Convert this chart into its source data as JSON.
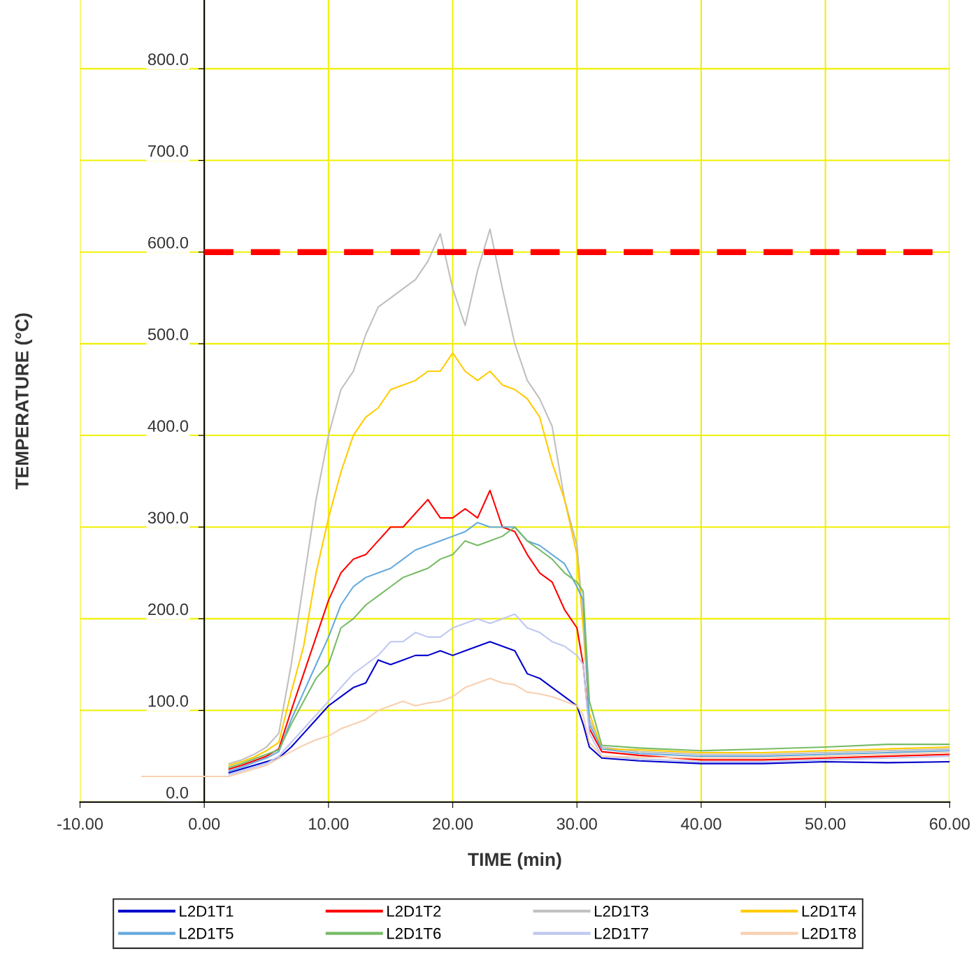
{
  "chart_data": {
    "type": "line",
    "xlabel": "TIME (min)",
    "ylabel": "TEMPERATURE (°C)",
    "x": [
      -5,
      0,
      2,
      3,
      4,
      5,
      6,
      7,
      8,
      9,
      10,
      11,
      12,
      13,
      14,
      15,
      16,
      17,
      18,
      19,
      20,
      21,
      22,
      23,
      24,
      25,
      26,
      27,
      28,
      29,
      30,
      30.5,
      31,
      32,
      35,
      40,
      45,
      50,
      55,
      60
    ],
    "xlim": [
      -10,
      60
    ],
    "ylim": [
      0,
      875
    ],
    "xticks": [
      {
        "value": -10,
        "label": "-10.00"
      },
      {
        "value": 0,
        "label": "0.00"
      },
      {
        "value": 10,
        "label": "10.00"
      },
      {
        "value": 20,
        "label": "20.00"
      },
      {
        "value": 30,
        "label": "30.00"
      },
      {
        "value": 40,
        "label": "40.00"
      },
      {
        "value": 50,
        "label": "50.00"
      },
      {
        "value": 60,
        "label": "60.00"
      }
    ],
    "yticks": [
      {
        "value": 0,
        "label": "0.0"
      },
      {
        "value": 100,
        "label": "100.0"
      },
      {
        "value": 200,
        "label": "200.0"
      },
      {
        "value": 300,
        "label": "300.0"
      },
      {
        "value": 400,
        "label": "400.0"
      },
      {
        "value": 500,
        "label": "500.0"
      },
      {
        "value": 600,
        "label": "600.0"
      },
      {
        "value": 700,
        "label": "700.0"
      },
      {
        "value": 800,
        "label": "800.0"
      }
    ],
    "grid": true,
    "legend": "bottom",
    "marker": "none",
    "line_style": "solid",
    "ref_lines": [
      {
        "axis": "y",
        "value": 600,
        "color": "#ff0000",
        "line_style": "dashed"
      }
    ],
    "series": [
      {
        "name": "L2D1T1",
        "color": "#0000cc",
        "values": [
          null,
          null,
          32,
          36,
          40,
          44,
          48,
          60,
          75,
          90,
          105,
          115,
          125,
          130,
          155,
          150,
          155,
          160,
          160,
          165,
          160,
          165,
          170,
          175,
          170,
          165,
          140,
          135,
          125,
          115,
          105,
          85,
          60,
          48,
          45,
          42,
          42,
          44,
          43,
          44
        ]
      },
      {
        "name": "L2D1T2",
        "color": "#ff0000",
        "values": [
          null,
          null,
          36,
          40,
          45,
          50,
          58,
          100,
          140,
          180,
          220,
          250,
          265,
          270,
          285,
          300,
          300,
          315,
          330,
          310,
          310,
          320,
          310,
          340,
          300,
          295,
          270,
          250,
          240,
          210,
          190,
          150,
          80,
          55,
          51,
          46,
          46,
          48,
          50,
          52
        ]
      },
      {
        "name": "L2D1T3",
        "color": "#bfbfbf",
        "values": [
          null,
          null,
          42,
          46,
          52,
          60,
          75,
          150,
          240,
          330,
          400,
          450,
          470,
          510,
          540,
          550,
          560,
          570,
          590,
          620,
          560,
          520,
          580,
          625,
          560,
          500,
          460,
          440,
          410,
          330,
          280,
          200,
          90,
          60,
          55,
          52,
          52,
          54,
          56,
          58
        ]
      },
      {
        "name": "L2D1T4",
        "color": "#ffcc00",
        "values": [
          null,
          null,
          40,
          44,
          49,
          56,
          65,
          120,
          170,
          250,
          310,
          360,
          400,
          420,
          430,
          450,
          455,
          460,
          470,
          470,
          490,
          470,
          460,
          470,
          455,
          450,
          440,
          420,
          370,
          330,
          270,
          190,
          97,
          58,
          57,
          54,
          54,
          56,
          58,
          60
        ]
      },
      {
        "name": "L2D1T5",
        "color": "#66aadd",
        "values": [
          null,
          null,
          34,
          38,
          43,
          48,
          55,
          90,
          120,
          150,
          180,
          215,
          235,
          245,
          250,
          255,
          265,
          275,
          280,
          285,
          290,
          295,
          305,
          300,
          300,
          300,
          285,
          280,
          270,
          260,
          235,
          220,
          85,
          58,
          53,
          50,
          50,
          52,
          54,
          56
        ]
      },
      {
        "name": "L2D1T6",
        "color": "#77bb66",
        "values": [
          null,
          null,
          38,
          42,
          47,
          52,
          57,
          85,
          110,
          135,
          150,
          190,
          200,
          215,
          225,
          235,
          245,
          250,
          255,
          265,
          270,
          285,
          280,
          285,
          290,
          300,
          285,
          275,
          265,
          250,
          240,
          230,
          110,
          62,
          59,
          56,
          58,
          60,
          63,
          63
        ]
      },
      {
        "name": "L2D1T7",
        "color": "#c0c8f0",
        "values": [
          null,
          null,
          30,
          34,
          38,
          42,
          50,
          65,
          80,
          95,
          110,
          125,
          140,
          150,
          160,
          175,
          175,
          185,
          180,
          180,
          190,
          195,
          200,
          195,
          200,
          205,
          190,
          185,
          175,
          170,
          160,
          150,
          75,
          50,
          47,
          44,
          44,
          46,
          48,
          50
        ]
      },
      {
        "name": "L2D1T8",
        "color": "#f8cfb0",
        "values": [
          28,
          28,
          28,
          32,
          36,
          40,
          48,
          55,
          62,
          68,
          72,
          80,
          85,
          90,
          100,
          105,
          110,
          105,
          108,
          110,
          115,
          125,
          130,
          135,
          130,
          128,
          120,
          118,
          115,
          110,
          105,
          95,
          65,
          50,
          49,
          48,
          48,
          50,
          52,
          54
        ]
      }
    ]
  }
}
